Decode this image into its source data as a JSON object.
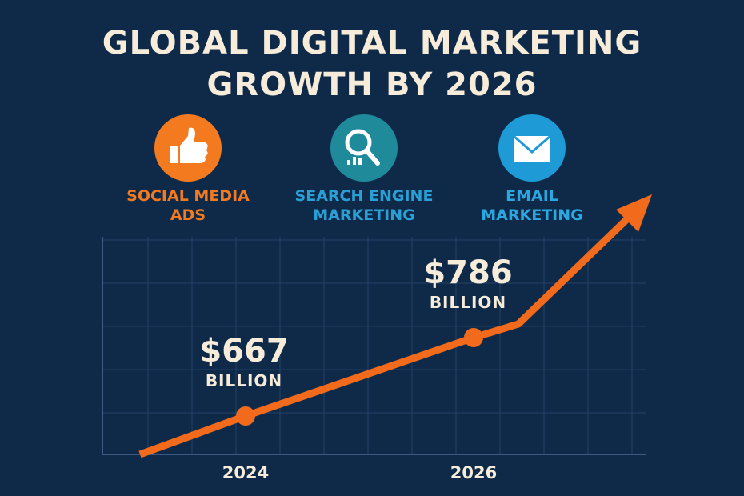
{
  "chart_data": {
    "type": "line",
    "title": "GLOBAL DIGITAL MARKETING GROWTH BY 2026",
    "channels": [
      "SOCIAL MEDIA ADS",
      "SEARCH ENGINE MARKETING",
      "EMAIL MARKETING"
    ],
    "channel_colors": [
      "#f47a20",
      "#2a9fd6",
      "#2aa6e0"
    ],
    "categories": [
      "2024",
      "2026"
    ],
    "values": [
      667,
      786
    ],
    "value_labels": [
      "$667",
      "$786"
    ],
    "value_unit": "BILLION",
    "color": "#f26b1d",
    "grid": true
  }
}
